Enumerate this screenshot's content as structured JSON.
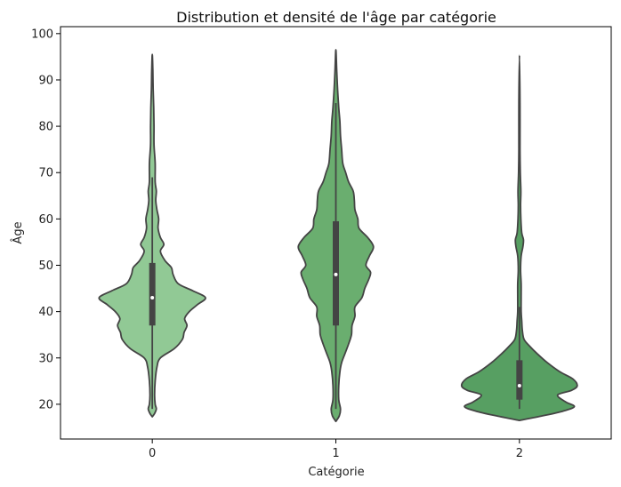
{
  "chart_data": {
    "type": "violin",
    "title": "Distribution et densité de l'âge par catégorie",
    "xlabel": "Catégorie",
    "ylabel": "Âge",
    "categories": [
      "0",
      "1",
      "2"
    ],
    "ylim": [
      12.5,
      101.5
    ],
    "yticks": [
      20,
      30,
      40,
      50,
      60,
      70,
      80,
      90,
      100
    ],
    "grid": false,
    "colors": [
      "#91c995",
      "#6aae6f",
      "#579f62"
    ],
    "edge_color": "#444444",
    "violins": [
      {
        "category": "0",
        "box": {
          "q1": 37,
          "median": 43,
          "q3": 50.5,
          "whisker_low": 19,
          "whisker_high": 69
        },
        "density": [
          [
            17.3,
            0.0
          ],
          [
            18.0,
            0.04
          ],
          [
            19.0,
            0.07
          ],
          [
            20.0,
            0.05
          ],
          [
            22.0,
            0.04
          ],
          [
            25.0,
            0.05
          ],
          [
            28.0,
            0.08
          ],
          [
            30.0,
            0.14
          ],
          [
            32.0,
            0.38
          ],
          [
            34.0,
            0.52
          ],
          [
            35.5,
            0.55
          ],
          [
            37.0,
            0.6
          ],
          [
            38.5,
            0.56
          ],
          [
            40.0,
            0.64
          ],
          [
            41.5,
            0.78
          ],
          [
            43.0,
            0.92
          ],
          [
            44.5,
            0.7
          ],
          [
            46.0,
            0.45
          ],
          [
            48.0,
            0.36
          ],
          [
            49.5,
            0.33
          ],
          [
            51.0,
            0.22
          ],
          [
            53.0,
            0.14
          ],
          [
            54.5,
            0.2
          ],
          [
            56.0,
            0.14
          ],
          [
            58.0,
            0.1
          ],
          [
            60.0,
            0.11
          ],
          [
            62.0,
            0.08
          ],
          [
            64.0,
            0.06
          ],
          [
            66.0,
            0.07
          ],
          [
            68.0,
            0.05
          ],
          [
            72.0,
            0.05
          ],
          [
            76.0,
            0.03
          ],
          [
            80.0,
            0.03
          ],
          [
            84.0,
            0.025
          ],
          [
            88.0,
            0.015
          ],
          [
            92.0,
            0.01
          ],
          [
            95.5,
            0.0
          ]
        ]
      },
      {
        "category": "1",
        "box": {
          "q1": 37,
          "median": 48,
          "q3": 59.5,
          "whisker_low": 19,
          "whisker_high": 85
        },
        "density": [
          [
            16.3,
            0.0
          ],
          [
            17.5,
            0.06
          ],
          [
            19.0,
            0.08
          ],
          [
            21.0,
            0.05
          ],
          [
            24.0,
            0.05
          ],
          [
            27.0,
            0.07
          ],
          [
            29.0,
            0.1
          ],
          [
            31.0,
            0.16
          ],
          [
            33.0,
            0.22
          ],
          [
            35.0,
            0.27
          ],
          [
            37.0,
            0.28
          ],
          [
            39.0,
            0.33
          ],
          [
            41.0,
            0.33
          ],
          [
            43.0,
            0.45
          ],
          [
            45.0,
            0.5
          ],
          [
            47.0,
            0.57
          ],
          [
            48.5,
            0.6
          ],
          [
            50.0,
            0.52
          ],
          [
            52.0,
            0.58
          ],
          [
            54.0,
            0.65
          ],
          [
            56.0,
            0.55
          ],
          [
            58.0,
            0.4
          ],
          [
            60.0,
            0.38
          ],
          [
            62.0,
            0.33
          ],
          [
            64.0,
            0.32
          ],
          [
            66.0,
            0.3
          ],
          [
            68.0,
            0.22
          ],
          [
            70.0,
            0.17
          ],
          [
            72.0,
            0.12
          ],
          [
            75.0,
            0.1
          ],
          [
            78.0,
            0.08
          ],
          [
            81.0,
            0.07
          ],
          [
            84.0,
            0.05
          ],
          [
            88.0,
            0.03
          ],
          [
            92.0,
            0.015
          ],
          [
            96.5,
            0.0
          ]
        ]
      },
      {
        "category": "2",
        "box": {
          "q1": 21,
          "median": 24,
          "q3": 29.5,
          "whisker_low": 19,
          "whisker_high": 41
        },
        "density": [
          [
            16.5,
            0.0
          ],
          [
            17.5,
            0.4
          ],
          [
            18.5,
            0.75
          ],
          [
            19.5,
            0.95
          ],
          [
            20.5,
            0.8
          ],
          [
            22.0,
            0.66
          ],
          [
            23.0,
            0.9
          ],
          [
            24.0,
            1.0
          ],
          [
            25.5,
            0.92
          ],
          [
            27.0,
            0.7
          ],
          [
            29.0,
            0.48
          ],
          [
            31.0,
            0.3
          ],
          [
            32.5,
            0.18
          ],
          [
            34.0,
            0.08
          ],
          [
            36.0,
            0.05
          ],
          [
            38.0,
            0.04
          ],
          [
            40.0,
            0.03
          ],
          [
            43.0,
            0.03
          ],
          [
            46.0,
            0.03
          ],
          [
            49.0,
            0.02
          ],
          [
            52.0,
            0.03
          ],
          [
            54.0,
            0.06
          ],
          [
            55.5,
            0.07
          ],
          [
            57.0,
            0.04
          ],
          [
            60.0,
            0.025
          ],
          [
            63.0,
            0.02
          ],
          [
            66.0,
            0.025
          ],
          [
            70.0,
            0.015
          ],
          [
            75.0,
            0.01
          ],
          [
            85.0,
            0.01
          ],
          [
            95.3,
            0.0
          ]
        ]
      }
    ]
  }
}
